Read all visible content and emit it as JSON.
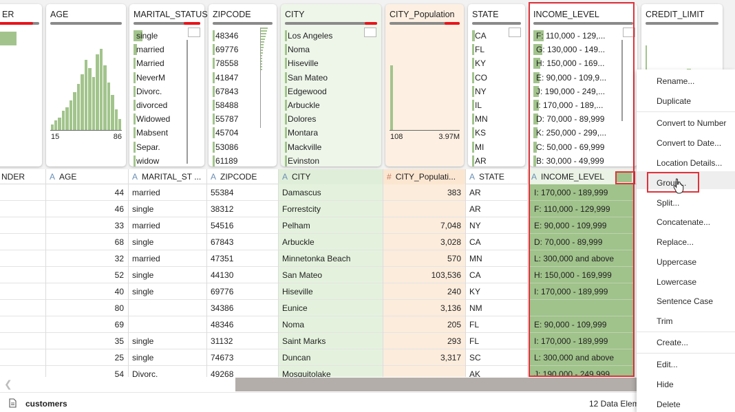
{
  "profile_cards": {
    "gender": {
      "title": "ER"
    },
    "age": {
      "title": "AGE",
      "range_min": "15",
      "range_max": "86",
      "histogram": [
        4,
        7,
        9,
        14,
        17,
        22,
        28,
        34,
        41,
        52,
        46,
        39,
        56,
        60,
        48,
        35,
        26,
        15,
        8
      ]
    },
    "marital_status": {
      "title": "MARITAL_STATUS",
      "values": [
        "single",
        "married",
        "Married",
        "NeverM",
        "Divorc.",
        "divorced",
        "Widowed",
        "Mabsent",
        "Separ.",
        "widow"
      ],
      "fills": [
        0.65,
        0.25,
        0.1,
        0.08,
        0.06,
        0.04,
        0.03,
        0.02,
        0.02,
        0.01
      ]
    },
    "zipcode": {
      "title": "ZIPCODE",
      "values": [
        "48346",
        "69776",
        "78558",
        "41847",
        "67843",
        "58488",
        "55787",
        "45704",
        "53086",
        "61189"
      ],
      "fills": [
        0.06,
        0.05,
        0.04,
        0.04,
        0.04,
        0.03,
        0.03,
        0.03,
        0.03,
        0.03
      ]
    },
    "city": {
      "title": "CITY",
      "values": [
        "Los Angeles",
        "Noma",
        "Hiseville",
        "San Mateo",
        "Edgewood",
        "Arbuckle",
        "Dolores",
        "Montara",
        "Mackville",
        "Evinston"
      ],
      "fills": [
        0.05,
        0.04,
        0.04,
        0.03,
        0.03,
        0.03,
        0.03,
        0.03,
        0.03,
        0.03
      ]
    },
    "city_population": {
      "title": "CITY_Population",
      "range_min": "108",
      "range_max": "3.97M"
    },
    "state": {
      "title": "STATE",
      "values": [
        "CA",
        "FL",
        "KY",
        "CO",
        "NY",
        "IL",
        "MN",
        "KS",
        "MI",
        "AR"
      ],
      "fills": [
        0.1,
        0.08,
        0.06,
        0.05,
        0.05,
        0.04,
        0.04,
        0.04,
        0.03,
        0.03
      ]
    },
    "income_level": {
      "title": "INCOME_LEVEL",
      "values": [
        "F: 110,000 - 129,...",
        "G: 130,000 - 149...",
        "H: 150,000 - 169...",
        "E: 90,000 - 109,9...",
        "J: 190,000 - 249,...",
        "I: 170,000 - 189,...",
        "D: 70,000 - 89,999",
        "K: 250,000 - 299,...",
        "C: 50,000 - 69,999",
        "B: 30,000 - 49,999"
      ],
      "fills": [
        0.18,
        0.16,
        0.12,
        0.11,
        0.09,
        0.09,
        0.08,
        0.07,
        0.06,
        0.05
      ]
    },
    "credit_limit": {
      "title": "CREDIT_LIMIT"
    }
  },
  "columns": {
    "gender": {
      "label": "NDER"
    },
    "age": {
      "type_icon": "A",
      "label": "AGE"
    },
    "marital_status": {
      "type_icon": "A",
      "label": "MARITAL_ST ..."
    },
    "zipcode": {
      "type_icon": "A",
      "label": "ZIPCODE"
    },
    "city": {
      "type_icon": "A",
      "label": "CITY"
    },
    "city_population": {
      "type_icon": "#",
      "label": "CITY_Populati..."
    },
    "state": {
      "type_icon": "A",
      "label": "STATE"
    },
    "income_level": {
      "type_icon": "A",
      "label": "INCOME_LEVEL"
    }
  },
  "rows": [
    {
      "age": "44",
      "marital": "married",
      "zip": "55384",
      "city": "Damascus",
      "pop": "383",
      "state": "AR",
      "income": "I: 170,000 - 189,999"
    },
    {
      "age": "46",
      "marital": "single",
      "zip": "38312",
      "city": "Forrestcity",
      "pop": "",
      "state": "AR",
      "income": "F: 110,000 - 129,999"
    },
    {
      "age": "33",
      "marital": "married",
      "zip": "54516",
      "city": "Pelham",
      "pop": "7,048",
      "state": "NY",
      "income": "E: 90,000 - 109,999"
    },
    {
      "age": "68",
      "marital": "single",
      "zip": "67843",
      "city": "Arbuckle",
      "pop": "3,028",
      "state": "CA",
      "income": "D: 70,000 - 89,999"
    },
    {
      "age": "32",
      "marital": "married",
      "zip": "47351",
      "city": "Minnetonka Beach",
      "pop": "570",
      "state": "MN",
      "income": "L: 300,000 and above"
    },
    {
      "age": "52",
      "marital": "single",
      "zip": "44130",
      "city": "San Mateo",
      "pop": "103,536",
      "state": "CA",
      "income": "H: 150,000 - 169,999"
    },
    {
      "age": "40",
      "marital": "single",
      "zip": "69776",
      "city": "Hiseville",
      "pop": "240",
      "state": "KY",
      "income": "I: 170,000 - 189,999"
    },
    {
      "age": "80",
      "marital": "",
      "zip": "34386",
      "city": "Eunice",
      "pop": "3,136",
      "state": "NM",
      "income": ""
    },
    {
      "age": "69",
      "marital": "",
      "zip": "48346",
      "city": "Noma",
      "pop": "205",
      "state": "FL",
      "income": "E: 90,000 - 109,999"
    },
    {
      "age": "35",
      "marital": "single",
      "zip": "31132",
      "city": "Saint Marks",
      "pop": "293",
      "state": "FL",
      "income": "I: 170,000 - 189,999"
    },
    {
      "age": "25",
      "marital": "single",
      "zip": "74673",
      "city": "Duncan",
      "pop": "3,317",
      "state": "SC",
      "income": "L: 300,000 and above"
    },
    {
      "age": "54",
      "marital": "Divorc.",
      "zip": "49268",
      "city": "Mosquitolake",
      "pop": "",
      "state": "AK",
      "income": "J: 190,000 - 249,999"
    }
  ],
  "context_menu": {
    "rename": "Rename...",
    "duplicate": "Duplicate",
    "convert_number": "Convert to Number",
    "convert_date": "Convert to Date...",
    "location_details": "Location Details...",
    "group": "Group...",
    "split": "Split...",
    "concatenate": "Concatenate...",
    "replace": "Replace...",
    "uppercase": "Uppercase",
    "lowercase": "Lowercase",
    "sentence_case": "Sentence Case",
    "trim": "Trim",
    "create": "Create...",
    "edit": "Edit...",
    "hide": "Hide",
    "delete": "Delete"
  },
  "footer": {
    "dataset_name": "customers",
    "element_count": "12 Data Elem"
  },
  "colors": {
    "accent_red": "#e0323a",
    "bar_green": "#a2c48c",
    "income_green": "#a0c28b",
    "city_bg": "#e4f2dd",
    "pop_bg": "#fcecdc"
  }
}
